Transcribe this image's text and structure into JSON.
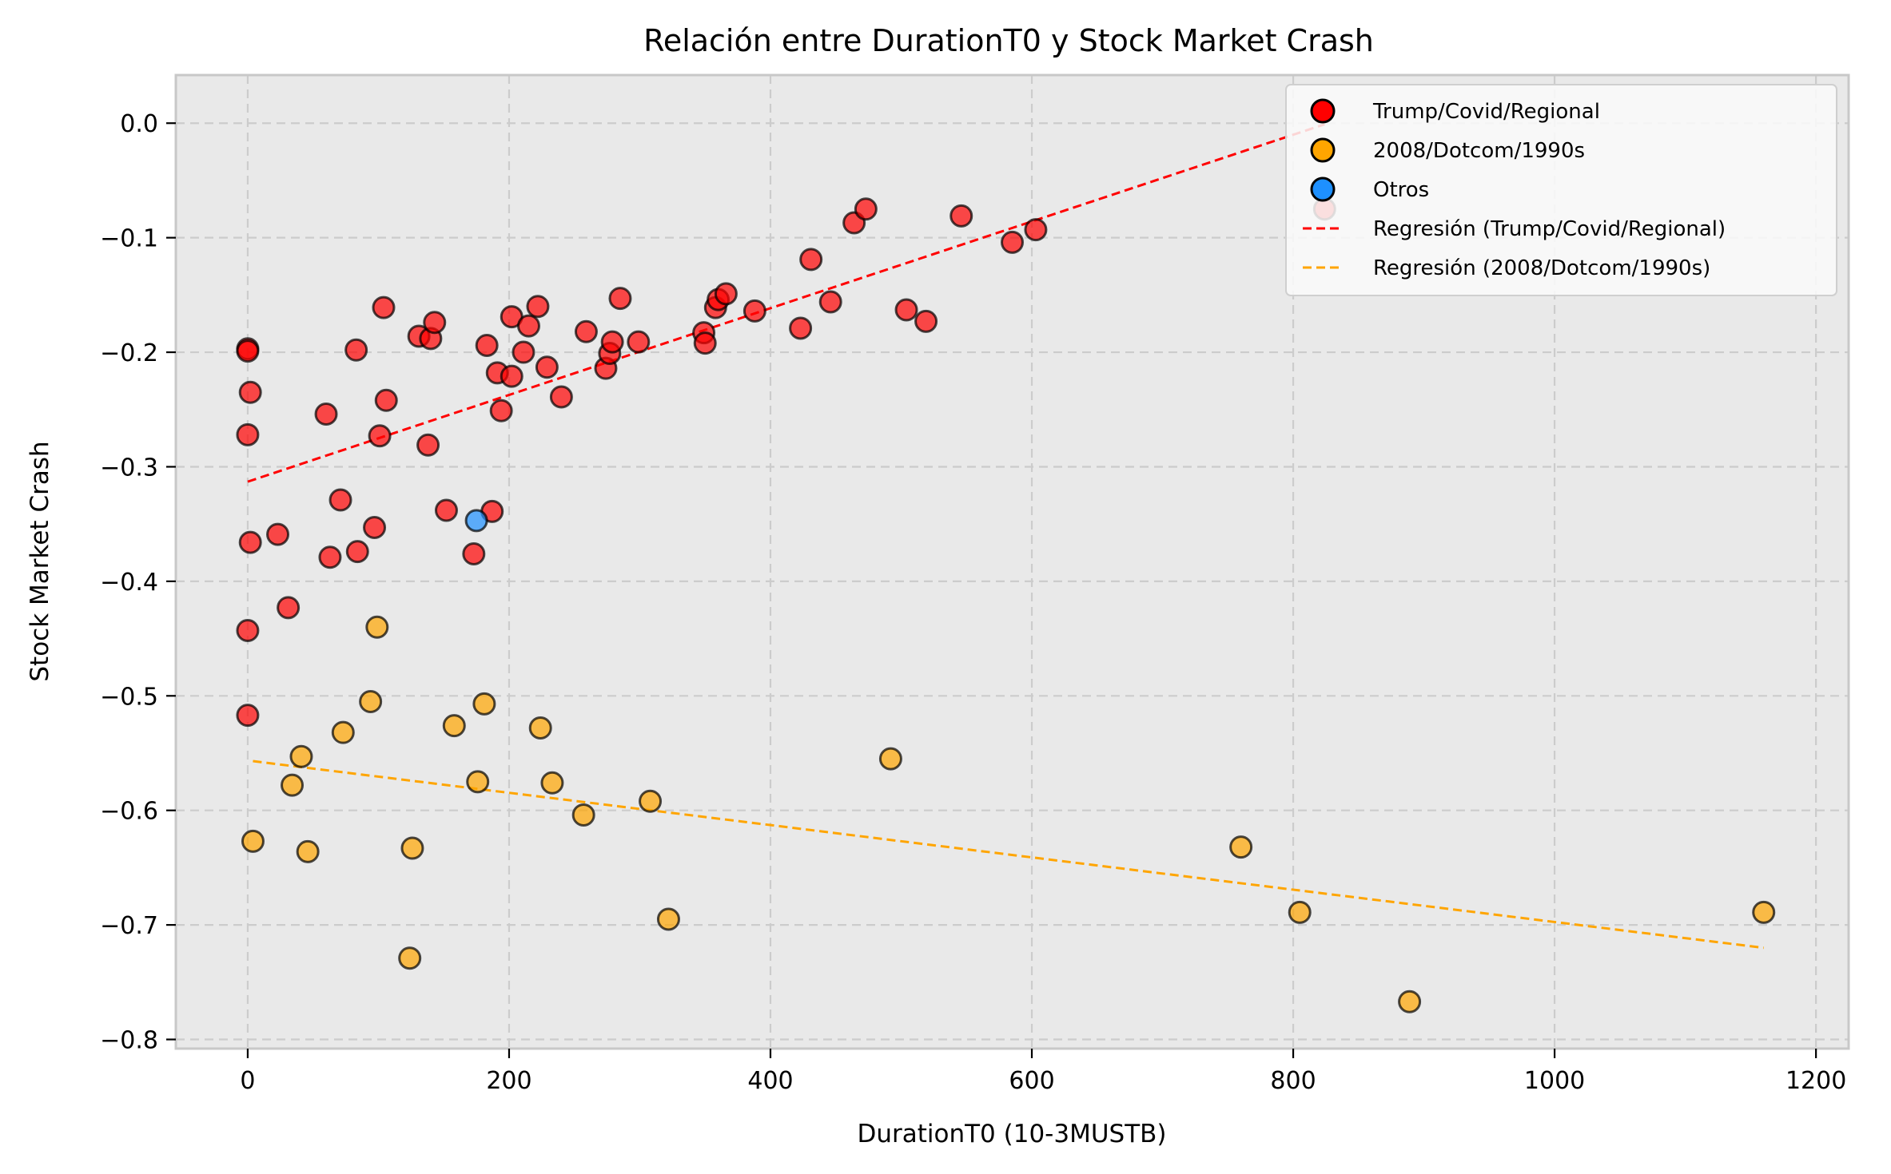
{
  "chart_data": {
    "type": "scatter",
    "title": "Relación entre DurationT0 y Stock Market Crash",
    "xlabel": "DurationT0 (10-3MUSTB)",
    "ylabel": "Stock Market Crash",
    "xlim": [
      -55,
      1225
    ],
    "ylim": [
      -0.808,
      0.042
    ],
    "xticks": [
      0,
      200,
      400,
      600,
      800,
      1000,
      1200
    ],
    "xtick_labels": [
      "0",
      "200",
      "400",
      "600",
      "800",
      "1000",
      "1200"
    ],
    "yticks": [
      0.0,
      -0.1,
      -0.2,
      -0.3,
      -0.4,
      -0.5,
      -0.6,
      -0.7,
      -0.8
    ],
    "ytick_labels": [
      "0.0",
      "−0.1",
      "−0.2",
      "−0.3",
      "−0.4",
      "−0.5",
      "−0.6",
      "−0.7",
      "−0.8"
    ],
    "grid": true,
    "legend_position": "top-right",
    "series": [
      {
        "name": "Trump/Covid/Regional",
        "kind": "scatter",
        "color": "#ff0000",
        "points": [
          [
            0,
            -0.197
          ],
          [
            0,
            -0.199
          ],
          [
            2,
            -0.235
          ],
          [
            0,
            -0.272
          ],
          [
            2,
            -0.366
          ],
          [
            0,
            -0.443
          ],
          [
            0,
            -0.517
          ],
          [
            23,
            -0.359
          ],
          [
            31,
            -0.423
          ],
          [
            60,
            -0.254
          ],
          [
            63,
            -0.379
          ],
          [
            71,
            -0.329
          ],
          [
            83,
            -0.198
          ],
          [
            84,
            -0.374
          ],
          [
            97,
            -0.353
          ],
          [
            101,
            -0.273
          ],
          [
            104,
            -0.161
          ],
          [
            106,
            -0.242
          ],
          [
            131,
            -0.186
          ],
          [
            138,
            -0.281
          ],
          [
            140,
            -0.188
          ],
          [
            143,
            -0.174
          ],
          [
            152,
            -0.338
          ],
          [
            173,
            -0.376
          ],
          [
            183,
            -0.194
          ],
          [
            187,
            -0.339
          ],
          [
            191,
            -0.218
          ],
          [
            194,
            -0.251
          ],
          [
            202,
            -0.169
          ],
          [
            202,
            -0.221
          ],
          [
            211,
            -0.2
          ],
          [
            215,
            -0.177
          ],
          [
            222,
            -0.16
          ],
          [
            229,
            -0.213
          ],
          [
            240,
            -0.239
          ],
          [
            259,
            -0.182
          ],
          [
            274,
            -0.214
          ],
          [
            277,
            -0.201
          ],
          [
            279,
            -0.191
          ],
          [
            285,
            -0.153
          ],
          [
            299,
            -0.191
          ],
          [
            349,
            -0.183
          ],
          [
            350,
            -0.192
          ],
          [
            358,
            -0.161
          ],
          [
            360,
            -0.154
          ],
          [
            366,
            -0.149
          ],
          [
            388,
            -0.164
          ],
          [
            423,
            -0.179
          ],
          [
            431,
            -0.119
          ],
          [
            446,
            -0.156
          ],
          [
            464,
            -0.087
          ],
          [
            473,
            -0.075
          ],
          [
            504,
            -0.163
          ],
          [
            519,
            -0.173
          ],
          [
            546,
            -0.081
          ],
          [
            585,
            -0.104
          ],
          [
            603,
            -0.093
          ],
          [
            824,
            -0.075
          ]
        ]
      },
      {
        "name": "2008/Dotcom/1990s",
        "kind": "scatter",
        "color": "#ffa500",
        "points": [
          [
            4,
            -0.627
          ],
          [
            34,
            -0.578
          ],
          [
            41,
            -0.553
          ],
          [
            46,
            -0.636
          ],
          [
            73,
            -0.532
          ],
          [
            94,
            -0.505
          ],
          [
            99,
            -0.44
          ],
          [
            124,
            -0.729
          ],
          [
            126,
            -0.633
          ],
          [
            158,
            -0.526
          ],
          [
            176,
            -0.575
          ],
          [
            181,
            -0.507
          ],
          [
            224,
            -0.528
          ],
          [
            233,
            -0.576
          ],
          [
            257,
            -0.604
          ],
          [
            308,
            -0.592
          ],
          [
            322,
            -0.695
          ],
          [
            492,
            -0.555
          ],
          [
            760,
            -0.632
          ],
          [
            805,
            -0.689
          ],
          [
            889,
            -0.767
          ],
          [
            1160,
            -0.689
          ]
        ]
      },
      {
        "name": "Otros",
        "kind": "scatter",
        "color": "#1e90ff",
        "points": [
          [
            175,
            -0.347
          ]
        ]
      },
      {
        "name": "Regresión (Trump/Covid/Regional)",
        "kind": "line",
        "color": "#ff0000",
        "points": [
          [
            0,
            -0.313
          ],
          [
            824,
            -0.001
          ]
        ]
      },
      {
        "name": "Regresión (2008/Dotcom/1990s)",
        "kind": "line",
        "color": "#ffa500",
        "points": [
          [
            4,
            -0.557
          ],
          [
            1160,
            -0.72
          ]
        ]
      }
    ]
  }
}
